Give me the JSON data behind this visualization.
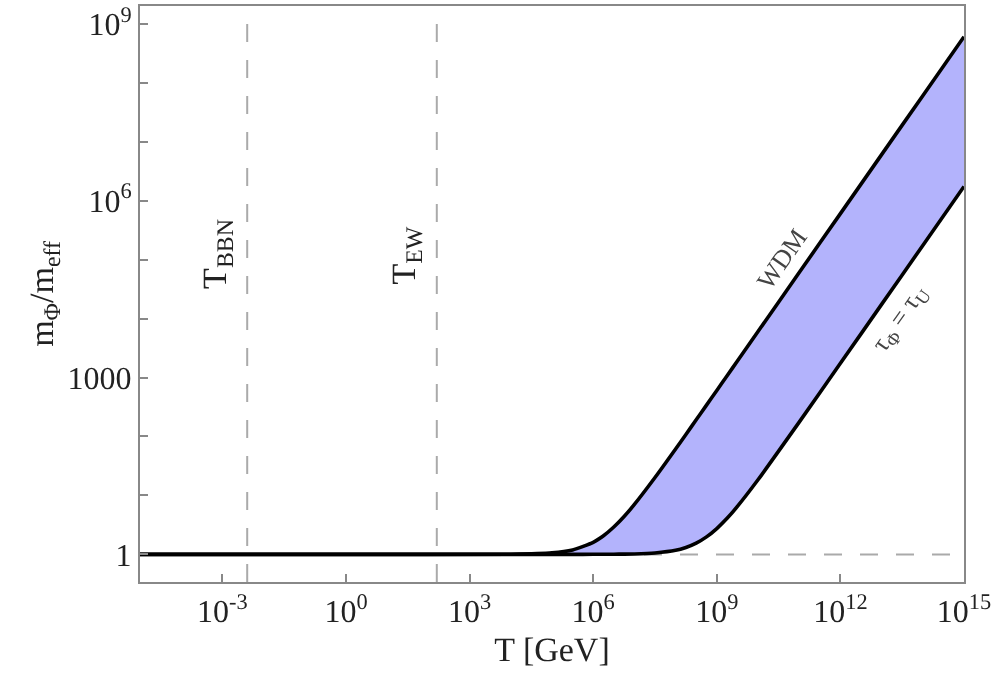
{
  "chart_data": {
    "type": "line",
    "xlabel": "T [GeV]",
    "ylabel": "m$_{Φ}$/m$_{eff}$",
    "log": "xy",
    "grid": false,
    "legend": false,
    "marker": "none",
    "line_style": "solid",
    "x": [
      1e-05,
      1,
      10000.0,
      100000.0,
      316228,
      1000000.0,
      1778279,
      3162278,
      5623413,
      10000000.0,
      31622777,
      100000000.0,
      177827941,
      316227766,
      562341325,
      1000000000.0,
      1778279410,
      3162277660,
      10000000000.0,
      100000000000.0,
      1000000000000.0,
      10000000000000.0,
      100000000000000.0,
      1000000000000000.0
    ],
    "series": [
      {
        "name": "τ$_{Φ}$ = τ$_{U}$",
        "color": "#000000",
        "values": [
          1,
          1,
          1,
          1,
          1,
          1.002,
          1.003,
          1.006,
          1.01,
          1.017,
          1.055,
          1.17,
          1.31,
          1.55,
          1.98,
          2.74,
          4.09,
          6.5,
          18.4,
          175,
          1739,
          17380,
          173800,
          1738000
        ]
      },
      {
        "name": "WDM",
        "type": "area",
        "color": "#b3b3fc",
        "values": [
          1,
          1,
          1.006,
          1.06,
          1.19,
          1.6,
          2.07,
          2.91,
          4.39,
          7.03,
          20.1,
          61.3,
          108,
          191.5,
          340,
          604,
          1073,
          1906,
          6030,
          60260,
          602600,
          6030000,
          60300000,
          603000000
        ]
      }
    ],
    "xlim": [
      1e-05,
      1000000000000000.0
    ],
    "ylim": [
      0.34,
      2000000000
    ],
    "xticks": [
      {
        "value": 0.001,
        "label": "10$^{-3}$"
      },
      {
        "value": 1,
        "label": "10$^{0}$"
      },
      {
        "value": 1000,
        "label": "10$^{3}$"
      },
      {
        "value": 1000000,
        "label": "10$^{6}$"
      },
      {
        "value": 1000000000,
        "label": "10$^{9}$"
      },
      {
        "value": 1000000000000,
        "label": "10$^{12}$"
      },
      {
        "value": 1000000000000000,
        "label": "10$^{15}$"
      }
    ],
    "yticks": [
      1,
      {
        "value": 10,
        "label": null
      },
      {
        "value": 100,
        "label": null
      },
      1000,
      {
        "value": 10000,
        "label": null
      },
      {
        "value": 100000,
        "label": null
      },
      {
        "value": 1000000,
        "label": "10$^{6}$"
      },
      {
        "value": 10000000,
        "label": null
      },
      {
        "value": 100000000,
        "label": null
      },
      {
        "value": 1000000000,
        "label": "10$^{9}$"
      }
    ],
    "ref_lines": [
      {
        "axis": "x",
        "value": 0.004,
        "label": "T$_{BBN}$",
        "color": "#aaaaaa",
        "line_style": "dashed"
      },
      {
        "axis": "x",
        "value": 160,
        "label": "T$_{EW}$",
        "color": "#aaaaaa",
        "line_style": "dashed"
      },
      {
        "axis": "y",
        "value": 1,
        "color": "#aaaaaa",
        "line_style": "dashed"
      }
    ]
  }
}
